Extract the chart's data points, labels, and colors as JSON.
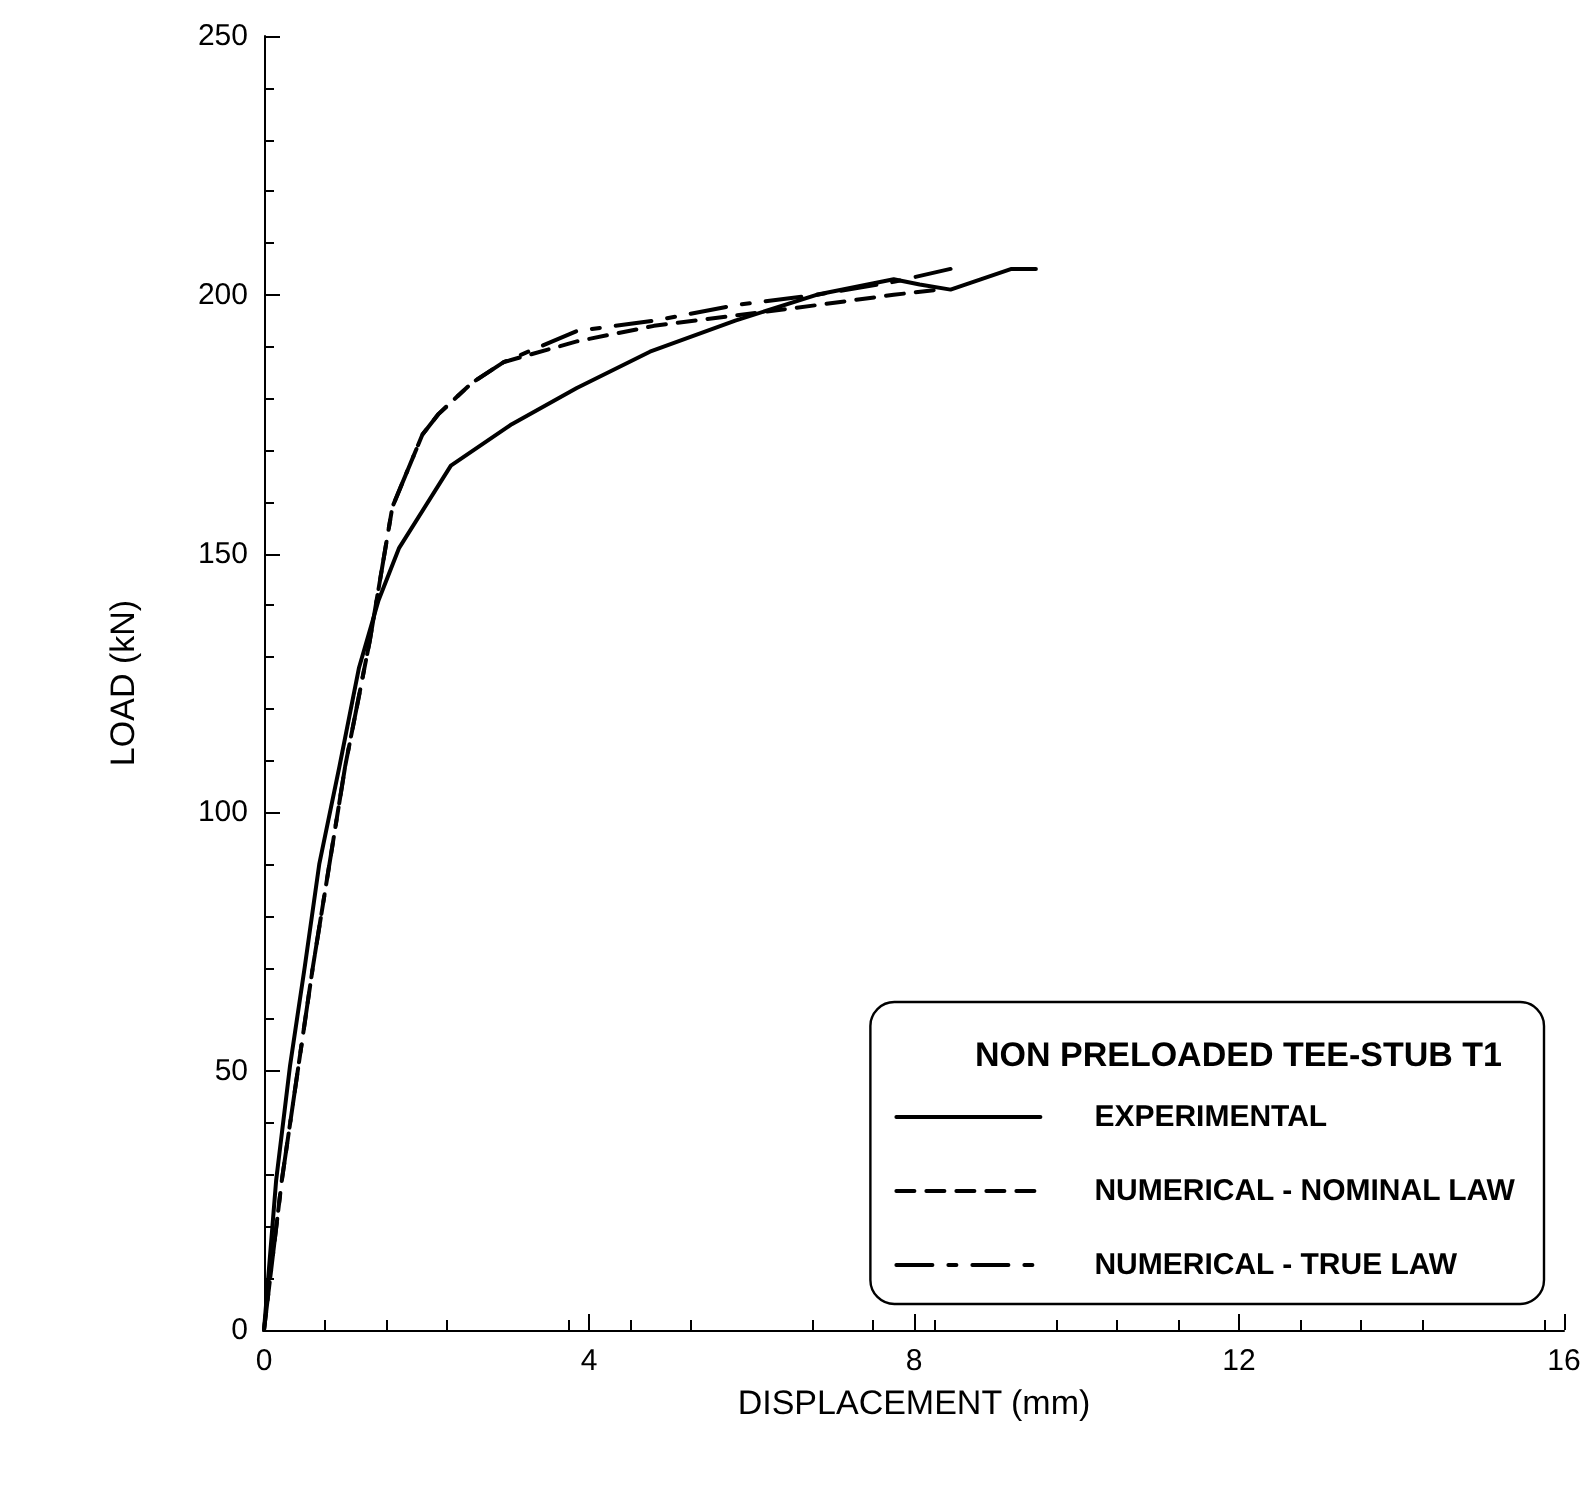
{
  "chart_data": {
    "type": "line",
    "xlabel": "DISPLACEMENT (mm)",
    "ylabel": "LOAD (kN)",
    "legend_title": "NON PRELOADED TEE-STUB T1",
    "xlim": [
      0,
      16
    ],
    "xticks": [
      0,
      4,
      8,
      12,
      16
    ],
    "ylim": [
      0,
      250
    ],
    "yticks": [
      0,
      50,
      100,
      150,
      200,
      250
    ],
    "grid": false,
    "legend": "bottom right",
    "marker": "none",
    "series": [
      {
        "name": "EXPERIMENTAL",
        "color": "#000000",
        "line_style": "solid",
        "x": [
          0,
          0.15,
          0.32,
          0.5,
          0.68,
          0.93,
          1.17,
          1.41,
          1.66,
          2.3,
          3.05,
          3.85,
          4.75,
          5.8,
          6.8,
          7.75,
          8.07,
          8.45,
          9.2,
          9.5
        ],
        "values": [
          0,
          29,
          51,
          70,
          90,
          109,
          128,
          141,
          151,
          167,
          175,
          182,
          189,
          195,
          200,
          203,
          202,
          201,
          205,
          205
        ]
      },
      {
        "name": "NUMERICAL - NOMINAL LAW",
        "color": "#000000",
        "line_style": "dashed",
        "x": [
          0,
          0.22,
          0.6,
          1.0,
          1.3,
          1.58,
          1.95,
          2.15,
          2.56,
          2.95,
          3.85,
          4.8,
          5.8,
          6.8,
          7.75,
          8.3
        ],
        "values": [
          0,
          29,
          70,
          109,
          133,
          159,
          173,
          177,
          183,
          187,
          191,
          194,
          196,
          198,
          200,
          201
        ]
      },
      {
        "name": "NUMERICAL - TRUE LAW",
        "color": "#000000",
        "line_style": "dashdot",
        "x": [
          0,
          0.22,
          0.6,
          1.0,
          1.3,
          1.58,
          1.95,
          2.15,
          2.56,
          2.95,
          3.85,
          4.8,
          5.8,
          6.8,
          7.75,
          8.45
        ],
        "values": [
          0,
          29,
          70,
          109,
          133,
          159,
          173,
          177,
          183,
          187,
          193,
          195,
          198,
          200,
          202.5,
          205
        ]
      }
    ]
  }
}
